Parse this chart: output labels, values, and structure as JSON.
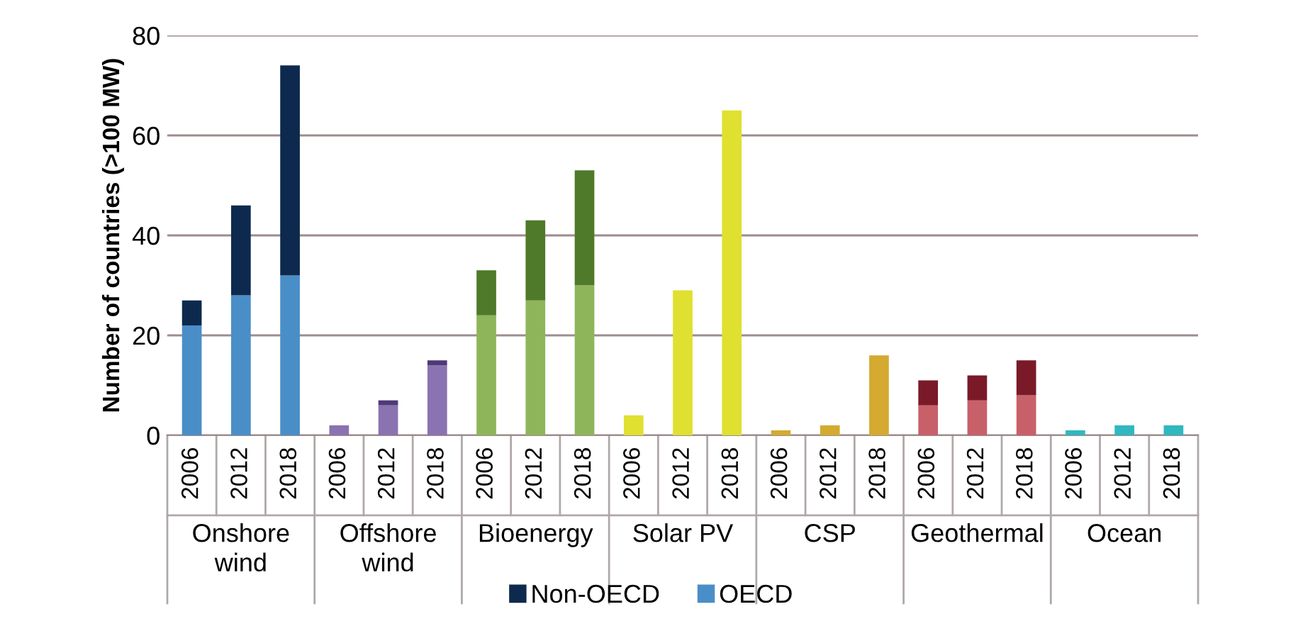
{
  "chart_data": {
    "type": "bar",
    "stacked": true,
    "ylabel": "Number of countries (>100 MW)",
    "categories": [
      "2006",
      "2012",
      "2018",
      "2006",
      "2012",
      "2018",
      "2006",
      "2012",
      "2018",
      "2006",
      "2012",
      "2018",
      "2006",
      "2012",
      "2018",
      "2006",
      "2012",
      "2018",
      "2006",
      "2012",
      "2018"
    ],
    "annotations": [
      "Onshore\nwind",
      "Offshore\nwind",
      "Bioenergy",
      "Solar PV",
      "CSP",
      "Geothermal",
      "Ocean"
    ],
    "series": [
      {
        "name": "OECD",
        "color": "#4a8ec8",
        "values": [
          22,
          28,
          32,
          2,
          6,
          14,
          24,
          27,
          30,
          4,
          29,
          65,
          1,
          2,
          16,
          6,
          7,
          8,
          1,
          2,
          2
        ],
        "colors": [
          "#4a8ec8",
          "#4a8ec8",
          "#4a8ec8",
          "#8a73b0",
          "#8a73b0",
          "#8a73b0",
          "#8fb55a",
          "#8fb55a",
          "#8fb55a",
          "#e0e030",
          "#e0e030",
          "#e0e030",
          "#d4aa30",
          "#d4aa30",
          "#d4aa30",
          "#c8606a",
          "#c8606a",
          "#c8606a",
          "#30b8c0",
          "#30b8c0",
          "#30b8c0"
        ]
      },
      {
        "name": "Non-OECD",
        "color": "#0d2a4e",
        "values": [
          5,
          18,
          42,
          0,
          1,
          1,
          9,
          16,
          23,
          0,
          0,
          0,
          0,
          0,
          0,
          5,
          5,
          7,
          0,
          0,
          0
        ],
        "colors": [
          "#0d2a4e",
          "#0d2a4e",
          "#0d2a4e",
          "#4e3a78",
          "#4e3a78",
          "#4e3a78",
          "#4f7a2a",
          "#4f7a2a",
          "#4f7a2a",
          "#c8c820",
          "#c8c820",
          "#c8c820",
          "#b8901a",
          "#b8901a",
          "#b8901a",
          "#7a1a28",
          "#7a1a28",
          "#7a1a28",
          "#208890",
          "#208890",
          "#208890"
        ]
      }
    ],
    "ylim": [
      0,
      80
    ],
    "yticks": [
      0,
      20,
      40,
      60,
      80
    ],
    "grid": "y",
    "legend": "bottom"
  }
}
